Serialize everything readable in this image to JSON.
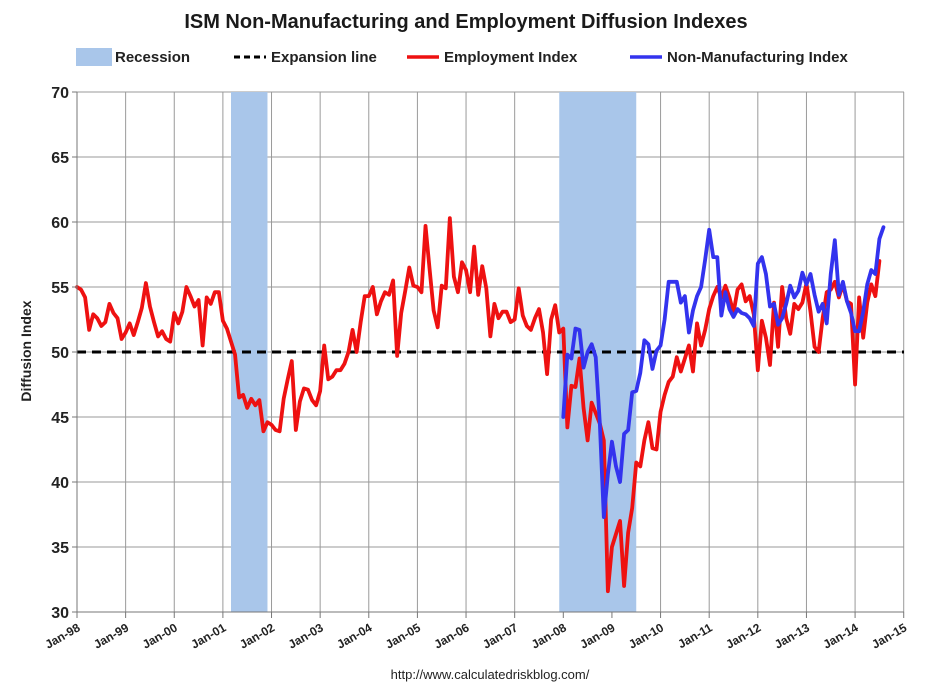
{
  "chart_data": {
    "type": "line",
    "title": "ISM Non-Manufacturing and Employment Diffusion Indexes",
    "ylabel": "Diffusion Index",
    "xlabel": "",
    "ylim": [
      30,
      70
    ],
    "yticks": [
      30,
      35,
      40,
      45,
      50,
      55,
      60,
      65,
      70
    ],
    "xticks": [
      "Jan-98",
      "Jan-99",
      "Jan-00",
      "Jan-01",
      "Jan-02",
      "Jan-03",
      "Jan-04",
      "Jan-05",
      "Jan-06",
      "Jan-07",
      "Jan-08",
      "Jan-09",
      "Jan-10",
      "Jan-11",
      "Jan-12",
      "Jan-13",
      "Jan-14",
      "Jan-15"
    ],
    "grid": true,
    "legend_position": "top",
    "source": "http://www.calculatedriskblog.com/",
    "legend": [
      {
        "key": "recession",
        "label": "Recession",
        "color": "#a9c6ea",
        "style": "box"
      },
      {
        "key": "expansion",
        "label": "Expansion line",
        "color": "#000000",
        "style": "dashed"
      },
      {
        "key": "employment",
        "label": "Employment Index",
        "color": "#ee1111",
        "style": "line"
      },
      {
        "key": "nonmfg",
        "label": "Non-Manufacturing Index",
        "color": "#3333ee",
        "style": "line"
      }
    ],
    "recessions": [
      {
        "start": "2001-03",
        "end": "2001-11"
      },
      {
        "start": "2007-12",
        "end": "2009-06"
      }
    ],
    "expansion_line": 50,
    "series": [
      {
        "name": "Employment Index",
        "color": "#ee1111",
        "start": "1998-01",
        "values": [
          55.0,
          54.8,
          54.2,
          51.7,
          52.9,
          52.6,
          52.0,
          52.3,
          53.7,
          53.0,
          52.6,
          51.0,
          51.5,
          52.2,
          51.3,
          52.3,
          53.4,
          55.3,
          53.5,
          52.3,
          51.2,
          51.6,
          51.0,
          50.8,
          53.0,
          52.2,
          53.1,
          55.0,
          54.3,
          53.5,
          54.0,
          50.5,
          54.2,
          53.7,
          54.6,
          54.6,
          52.4,
          51.8,
          50.8,
          49.8,
          46.5,
          46.7,
          45.7,
          46.4,
          45.9,
          46.3,
          43.9,
          44.6,
          44.4,
          44.0,
          43.9,
          46.4,
          47.9,
          49.3,
          44.0,
          46.2,
          47.2,
          47.1,
          46.3,
          45.9,
          47.0,
          50.5,
          47.9,
          48.1,
          48.6,
          48.6,
          49.1,
          50.0,
          51.7,
          50.0,
          52.3,
          54.3,
          54.3,
          55.0,
          52.9,
          53.9,
          54.6,
          54.4,
          55.5,
          49.7,
          53.0,
          54.7,
          56.5,
          55.1,
          55.0,
          54.6,
          59.7,
          56.4,
          53.2,
          51.9,
          55.1,
          54.9,
          60.3,
          55.8,
          54.6,
          56.9,
          56.3,
          54.6,
          58.1,
          54.4,
          56.6,
          54.9,
          51.2,
          53.7,
          52.6,
          53.1,
          53.1,
          52.3,
          52.5,
          54.9,
          52.8,
          52.0,
          51.7,
          52.6,
          53.3,
          51.5,
          48.3,
          52.5,
          53.6,
          51.5,
          51.8,
          44.2,
          47.4,
          47.3,
          49.5,
          45.7,
          43.2,
          46.1,
          45.3,
          44.5,
          43.2,
          31.6,
          35.0,
          36.0,
          37.0,
          32.0,
          36.1,
          38.0,
          41.5,
          41.2,
          43.2,
          44.6,
          42.6,
          42.5,
          45.4,
          46.7,
          47.7,
          48.1,
          49.6,
          48.5,
          49.5,
          50.5,
          48.5,
          52.2,
          50.5,
          51.7,
          53.3,
          54.3,
          55.0,
          54.2,
          55.1,
          54.2,
          53.0,
          54.8,
          55.2,
          53.9,
          54.3,
          52.9,
          48.6,
          52.4,
          51.1,
          49.0,
          53.8,
          50.4,
          55.0,
          52.6,
          51.4,
          53.7,
          53.3,
          53.8,
          55.3,
          53.1,
          50.4,
          50.0,
          52.6,
          54.6,
          54.8,
          55.4,
          54.2,
          55.2,
          53.9,
          53.7,
          47.5,
          54.2,
          51.1,
          53.8,
          55.2,
          54.3,
          57.0
        ]
      },
      {
        "name": "Non-Manufacturing Index",
        "color": "#3333ee",
        "start": "2008-01",
        "values": [
          45.0,
          49.8,
          49.5,
          51.8,
          51.7,
          48.8,
          50.0,
          50.6,
          49.6,
          44.6,
          37.3,
          40.6,
          43.1,
          41.2,
          40.0,
          43.7,
          44.0,
          46.9,
          47.0,
          48.4,
          50.9,
          50.6,
          48.7,
          50.1,
          50.5,
          52.5,
          55.4,
          55.4,
          55.4,
          53.8,
          54.3,
          51.5,
          53.2,
          54.3,
          55.0,
          57.1,
          59.4,
          57.3,
          57.3,
          52.8,
          54.6,
          53.3,
          52.7,
          53.3,
          53.0,
          52.9,
          52.6,
          52.0,
          56.8,
          57.3,
          56.0,
          53.5,
          53.7,
          52.1,
          52.6,
          53.7,
          55.1,
          54.2,
          54.7,
          56.1,
          55.2,
          56.0,
          54.4,
          53.1,
          53.7,
          52.2,
          56.0,
          58.6,
          54.4,
          55.4,
          53.9,
          53.0,
          51.6,
          51.6,
          53.1,
          55.2,
          56.3,
          56.0,
          58.7,
          59.6
        ]
      }
    ]
  }
}
